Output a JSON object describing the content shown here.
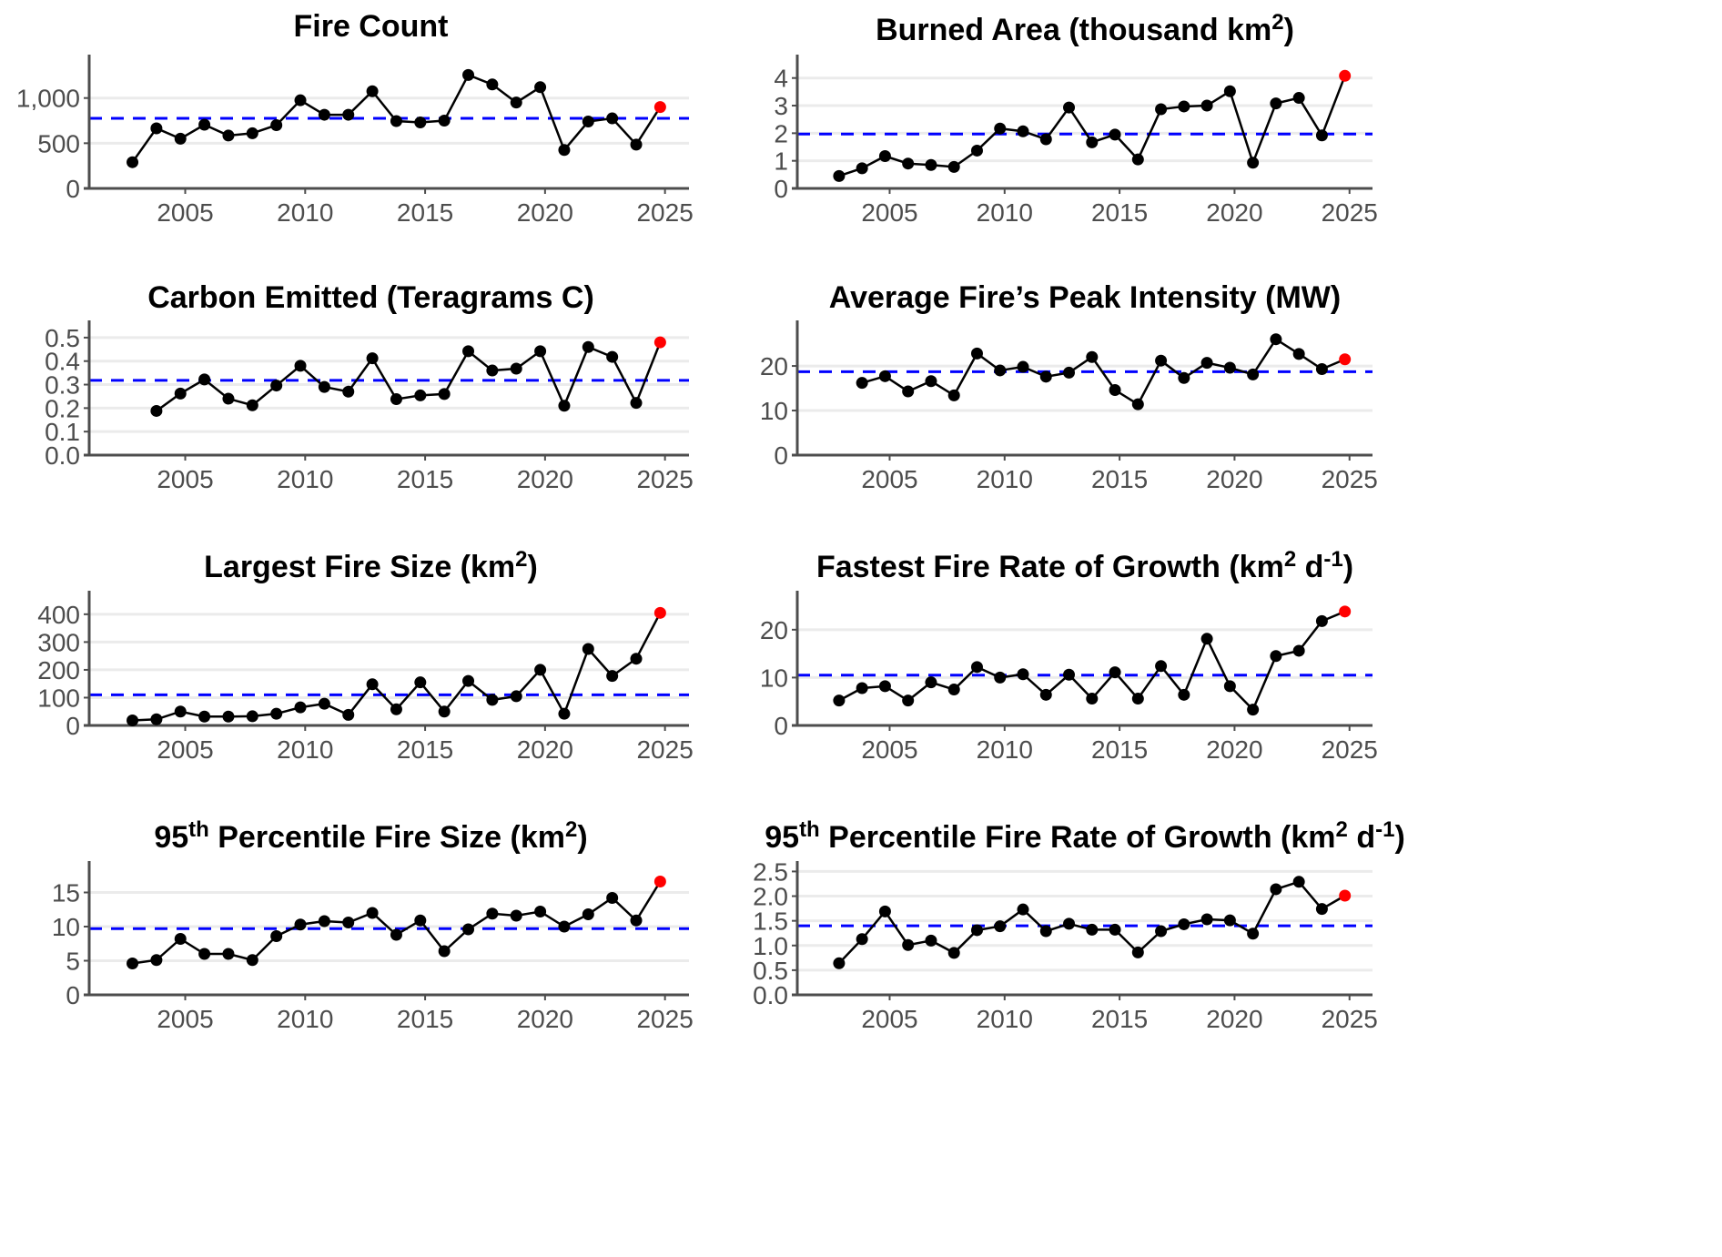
{
  "chart_data": [
    {
      "type": "line",
      "title": "Fire Count",
      "title_sup": [],
      "xlabel": "",
      "ylabel": "",
      "xlim": [
        2001.3,
        2026
      ],
      "ylim": [
        0,
        1420
      ],
      "xticks": [
        2005,
        2010,
        2015,
        2020,
        2025
      ],
      "xtick_labels": [
        "2005",
        "2010",
        "2015",
        "2020",
        "2025"
      ],
      "yticks": [
        0,
        500,
        1000
      ],
      "ytick_labels": [
        "0",
        "500",
        "1,000"
      ],
      "grid": "horizontal",
      "reference_line": {
        "value": 775,
        "color": "#0000ff",
        "style": "dashed"
      },
      "x": [
        2002.8,
        2003.8,
        2004.8,
        2005.8,
        2006.8,
        2007.8,
        2008.8,
        2009.8,
        2010.8,
        2011.8,
        2012.8,
        2013.8,
        2014.8,
        2015.8,
        2016.8,
        2017.8,
        2018.8,
        2019.8,
        2020.8,
        2021.8,
        2022.8,
        2023.8,
        2024.8
      ],
      "values": [
        290,
        665,
        550,
        705,
        585,
        610,
        700,
        975,
        815,
        815,
        1075,
        745,
        730,
        750,
        1255,
        1150,
        950,
        1120,
        425,
        740,
        775,
        485,
        900
      ],
      "highlight_last": {
        "color": "#ff0000"
      }
    },
    {
      "type": "line",
      "title": "Burned Area (thousand km2)",
      "xlabel": "",
      "ylabel": "",
      "xlim": [
        2001.3,
        2026
      ],
      "ylim": [
        0,
        4.65
      ],
      "xticks": [
        2005,
        2010,
        2015,
        2020,
        2025
      ],
      "xtick_labels": [
        "2005",
        "2010",
        "2015",
        "2020",
        "2025"
      ],
      "yticks": [
        0,
        1,
        2,
        3,
        4
      ],
      "ytick_labels": [
        "0",
        "1",
        "2",
        "3",
        "4"
      ],
      "grid": "horizontal",
      "reference_line": {
        "value": 1.97,
        "color": "#0000ff",
        "style": "dashed"
      },
      "x": [
        2002.8,
        2003.8,
        2004.8,
        2005.8,
        2006.8,
        2007.8,
        2008.8,
        2009.8,
        2010.8,
        2011.8,
        2012.8,
        2013.8,
        2014.8,
        2015.8,
        2016.8,
        2017.8,
        2018.8,
        2019.8,
        2020.8,
        2021.8,
        2022.8,
        2023.8,
        2024.8
      ],
      "values": [
        0.45,
        0.73,
        1.17,
        0.9,
        0.85,
        0.78,
        1.37,
        2.17,
        2.07,
        1.78,
        2.93,
        1.67,
        1.95,
        1.05,
        2.87,
        2.97,
        3.0,
        3.52,
        0.93,
        3.08,
        3.28,
        1.92,
        4.08
      ],
      "highlight_last": {
        "color": "#ff0000"
      }
    },
    {
      "type": "line",
      "title": "Carbon Emitted (Teragrams C)",
      "xlabel": "",
      "ylabel": "",
      "xlim": [
        2001.3,
        2026
      ],
      "ylim": [
        0,
        0.55
      ],
      "xticks": [
        2005,
        2010,
        2015,
        2020,
        2025
      ],
      "xtick_labels": [
        "2005",
        "2010",
        "2015",
        "2020",
        "2025"
      ],
      "yticks": [
        0,
        0.1,
        0.2,
        0.3,
        0.4,
        0.5
      ],
      "ytick_labels": [
        "0.0",
        "0.1",
        "0.2",
        "0.3",
        "0.4",
        "0.5"
      ],
      "grid": "horizontal",
      "reference_line": {
        "value": 0.318,
        "color": "#0000ff",
        "style": "dashed"
      },
      "x": [
        2003.8,
        2004.8,
        2005.8,
        2006.8,
        2007.8,
        2008.8,
        2009.8,
        2010.8,
        2011.8,
        2012.8,
        2013.8,
        2014.8,
        2015.8,
        2016.8,
        2017.8,
        2018.8,
        2019.8,
        2020.8,
        2021.8,
        2022.8,
        2023.8,
        2024.8
      ],
      "values": [
        0.188,
        0.262,
        0.322,
        0.24,
        0.212,
        0.296,
        0.38,
        0.29,
        0.27,
        0.412,
        0.238,
        0.254,
        0.26,
        0.442,
        0.36,
        0.368,
        0.442,
        0.21,
        0.46,
        0.418,
        0.222,
        0.48
      ],
      "highlight_last": {
        "color": "#ff0000"
      }
    },
    {
      "type": "line",
      "title": "Average Fire’s Peak Intensity (MW)",
      "xlabel": "",
      "ylabel": "",
      "xlim": [
        2001.3,
        2026
      ],
      "ylim": [
        0,
        29
      ],
      "xticks": [
        2005,
        2010,
        2015,
        2020,
        2025
      ],
      "xtick_labels": [
        "2005",
        "2010",
        "2015",
        "2020",
        "2025"
      ],
      "yticks": [
        0,
        10,
        20
      ],
      "ytick_labels": [
        "0",
        "10",
        "20"
      ],
      "grid": "horizontal",
      "reference_line": {
        "value": 18.7,
        "color": "#0000ff",
        "style": "dashed"
      },
      "x": [
        2003.8,
        2004.8,
        2005.8,
        2006.8,
        2007.8,
        2008.8,
        2009.8,
        2010.8,
        2011.8,
        2012.8,
        2013.8,
        2014.8,
        2015.8,
        2016.8,
        2017.8,
        2018.8,
        2019.8,
        2020.8,
        2021.8,
        2022.8,
        2023.8,
        2024.8
      ],
      "values": [
        16.2,
        17.7,
        14.3,
        16.6,
        13.4,
        22.8,
        19.0,
        19.8,
        17.6,
        18.5,
        22.0,
        14.6,
        11.4,
        21.2,
        17.3,
        20.7,
        19.6,
        18.1,
        26.0,
        22.7,
        19.3,
        21.5
      ],
      "highlight_last": {
        "color": "#ff0000"
      }
    },
    {
      "type": "line",
      "title": "Largest Fire Size (km2)",
      "xlabel": "",
      "ylabel": "",
      "xlim": [
        2001.3,
        2026
      ],
      "ylim": [
        0,
        465
      ],
      "xticks": [
        2005,
        2010,
        2015,
        2020,
        2025
      ],
      "xtick_labels": [
        "2005",
        "2010",
        "2015",
        "2020",
        "2025"
      ],
      "yticks": [
        0,
        100,
        200,
        300,
        400
      ],
      "ytick_labels": [
        "0",
        "100",
        "200",
        "300",
        "400"
      ],
      "grid": "horizontal",
      "reference_line": {
        "value": 110,
        "color": "#0000ff",
        "style": "dashed"
      },
      "x": [
        2002.8,
        2003.8,
        2004.8,
        2005.8,
        2006.8,
        2007.8,
        2008.8,
        2009.8,
        2010.8,
        2011.8,
        2012.8,
        2013.8,
        2014.8,
        2015.8,
        2016.8,
        2017.8,
        2018.8,
        2019.8,
        2020.8,
        2021.8,
        2022.8,
        2023.8,
        2024.8
      ],
      "values": [
        18,
        22,
        50,
        32,
        32,
        33,
        42,
        65,
        78,
        38,
        148,
        58,
        155,
        50,
        160,
        92,
        105,
        200,
        42,
        275,
        178,
        240,
        405
      ],
      "highlight_last": {
        "color": "#ff0000"
      }
    },
    {
      "type": "line",
      "title": "Fastest Fire Rate of Growth (km2 d-1)",
      "xlabel": "",
      "ylabel": "",
      "xlim": [
        2001.3,
        2026
      ],
      "ylim": [
        0,
        27
      ],
      "xticks": [
        2005,
        2010,
        2015,
        2020,
        2025
      ],
      "xtick_labels": [
        "2005",
        "2010",
        "2015",
        "2020",
        "2025"
      ],
      "yticks": [
        0,
        10,
        20
      ],
      "ytick_labels": [
        "0",
        "10",
        "20"
      ],
      "grid": "horizontal",
      "reference_line": {
        "value": 10.5,
        "color": "#0000ff",
        "style": "dashed"
      },
      "x": [
        2002.8,
        2003.8,
        2004.8,
        2005.8,
        2006.8,
        2007.8,
        2008.8,
        2009.8,
        2010.8,
        2011.8,
        2012.8,
        2013.8,
        2014.8,
        2015.8,
        2016.8,
        2017.8,
        2018.8,
        2019.8,
        2020.8,
        2021.8,
        2022.8,
        2023.8,
        2024.8
      ],
      "values": [
        5.2,
        7.8,
        8.2,
        5.2,
        9.0,
        7.5,
        12.2,
        10.0,
        10.7,
        6.4,
        10.6,
        5.6,
        11.1,
        5.6,
        12.4,
        6.4,
        18.1,
        8.2,
        3.3,
        14.5,
        15.6,
        21.8,
        23.8
      ],
      "highlight_last": {
        "color": "#ff0000"
      }
    },
    {
      "type": "line",
      "title": "95th Percentile Fire Size (km2)",
      "xlabel": "",
      "ylabel": "",
      "xlim": [
        2001.3,
        2026
      ],
      "ylim": [
        0,
        18.8
      ],
      "xticks": [
        2005,
        2010,
        2015,
        2020,
        2025
      ],
      "xtick_labels": [
        "2005",
        "2010",
        "2015",
        "2020",
        "2025"
      ],
      "yticks": [
        0,
        5,
        10,
        15
      ],
      "ytick_labels": [
        "0",
        "5",
        "10",
        "15"
      ],
      "grid": "horizontal",
      "reference_line": {
        "value": 9.7,
        "color": "#0000ff",
        "style": "dashed"
      },
      "x": [
        2002.8,
        2003.8,
        2004.8,
        2005.8,
        2006.8,
        2007.8,
        2008.8,
        2009.8,
        2010.8,
        2011.8,
        2012.8,
        2013.8,
        2014.8,
        2015.8,
        2016.8,
        2017.8,
        2018.8,
        2019.8,
        2020.8,
        2021.8,
        2022.8,
        2023.8,
        2024.8
      ],
      "values": [
        4.6,
        5.1,
        8.2,
        6.0,
        6.0,
        5.1,
        8.6,
        10.3,
        10.8,
        10.6,
        12.0,
        8.8,
        10.9,
        6.4,
        9.6,
        11.9,
        11.6,
        12.2,
        10.0,
        11.8,
        14.2,
        10.9,
        16.6
      ],
      "highlight_last": {
        "color": "#ff0000"
      }
    },
    {
      "type": "line",
      "title": "95th Percentile Fire Rate of Growth (km2 d-1)",
      "xlabel": "",
      "ylabel": "",
      "xlim": [
        2001.3,
        2026
      ],
      "ylim": [
        0,
        2.6
      ],
      "xticks": [
        2005,
        2010,
        2015,
        2020,
        2025
      ],
      "xtick_labels": [
        "2005",
        "2010",
        "2015",
        "2020",
        "2025"
      ],
      "yticks": [
        0,
        0.5,
        1.0,
        1.5,
        2.0,
        2.5
      ],
      "ytick_labels": [
        "0.0",
        "0.5",
        "1.0",
        "1.5",
        "2.0",
        "2.5"
      ],
      "grid": "horizontal",
      "reference_line": {
        "value": 1.4,
        "color": "#0000ff",
        "style": "dashed"
      },
      "x": [
        2002.8,
        2003.8,
        2004.8,
        2005.8,
        2006.8,
        2007.8,
        2008.8,
        2009.8,
        2010.8,
        2011.8,
        2012.8,
        2013.8,
        2014.8,
        2015.8,
        2016.8,
        2017.8,
        2018.8,
        2019.8,
        2020.8,
        2021.8,
        2022.8,
        2023.8,
        2024.8
      ],
      "values": [
        0.64,
        1.13,
        1.69,
        1.01,
        1.1,
        0.85,
        1.31,
        1.39,
        1.73,
        1.29,
        1.44,
        1.32,
        1.32,
        0.86,
        1.29,
        1.43,
        1.53,
        1.51,
        1.24,
        2.14,
        2.29,
        1.74,
        2.01
      ],
      "highlight_last": {
        "color": "#ff0000"
      }
    }
  ],
  "titles_display": [
    {
      "parts": [
        [
          "Fire Count",
          ""
        ]
      ]
    },
    {
      "parts": [
        [
          "Burned Area (thousand km",
          ""
        ],
        [
          "2",
          "sup"
        ],
        [
          ")",
          ""
        ]
      ]
    },
    {
      "parts": [
        [
          "Carbon Emitted (Teragrams C)",
          ""
        ]
      ]
    },
    {
      "parts": [
        [
          "Average Fire’s Peak Intensity (MW)",
          ""
        ]
      ]
    },
    {
      "parts": [
        [
          "Largest Fire Size (km",
          ""
        ],
        [
          "2",
          "sup"
        ],
        [
          ")",
          ""
        ]
      ]
    },
    {
      "parts": [
        [
          "Fastest Fire Rate of Growth (km",
          ""
        ],
        [
          "2",
          "sup"
        ],
        [
          " d",
          ""
        ],
        [
          "-1",
          "sup"
        ],
        [
          ")",
          ""
        ]
      ]
    },
    {
      "parts": [
        [
          "95",
          ""
        ],
        [
          "th",
          "sup"
        ],
        [
          " Percentile Fire Size (km",
          ""
        ],
        [
          "2",
          "sup"
        ],
        [
          ")",
          ""
        ]
      ]
    },
    {
      "parts": [
        [
          "95",
          ""
        ],
        [
          "th",
          "sup"
        ],
        [
          " Percentile Fire Rate of Growth (km",
          ""
        ],
        [
          "2",
          "sup"
        ],
        [
          " d",
          ""
        ],
        [
          "-1",
          "sup"
        ],
        [
          ")",
          ""
        ]
      ]
    }
  ],
  "colors": {
    "line": "#000000",
    "point": "#000000",
    "highlight": "#ff0000",
    "reference": "#0000ff",
    "grid": "#ebebeb",
    "axis": "#4d4d4d",
    "tick_text": "#4d4d4d"
  }
}
